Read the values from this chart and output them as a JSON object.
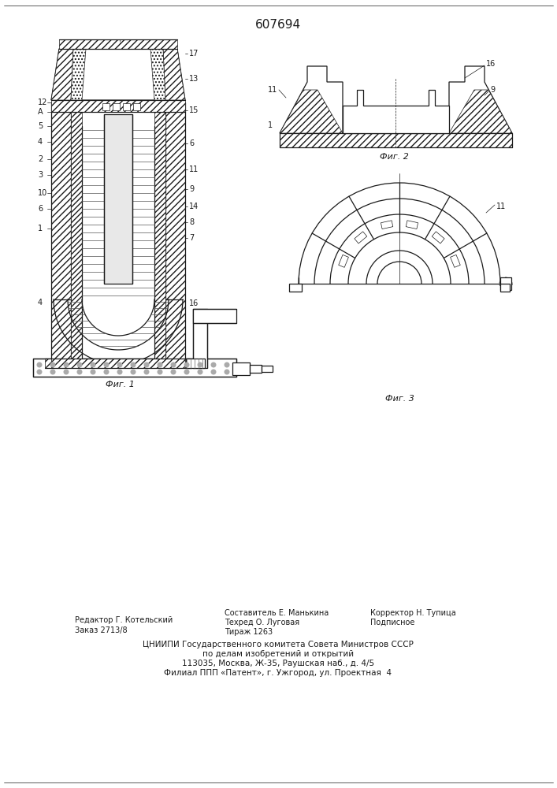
{
  "title": "607694",
  "fig1_caption": "Фиг. 1",
  "fig2_caption": "Фиг. 2",
  "fig3_caption": "Фиг. 3",
  "caption_fontsize": 8,
  "line_color": "#1a1a1a"
}
